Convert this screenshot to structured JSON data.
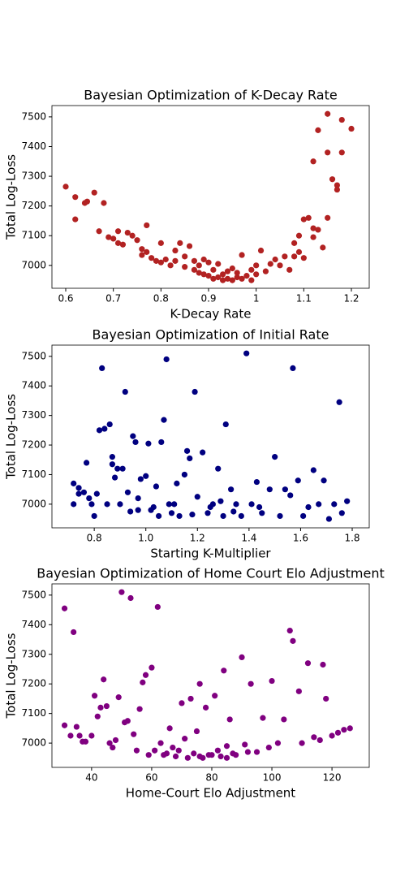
{
  "chart_data": [
    {
      "type": "scatter",
      "title": "Bayesian Optimization of K-Decay Rate",
      "x_label": "K-Decay Rate",
      "y_label": "Total Log-Loss",
      "color": "#b22222",
      "x": [
        0.6,
        0.62,
        0.62,
        0.64,
        0.645,
        0.66,
        0.67,
        0.68,
        0.69,
        0.7,
        0.71,
        0.71,
        0.72,
        0.73,
        0.74,
        0.75,
        0.76,
        0.76,
        0.77,
        0.77,
        0.78,
        0.79,
        0.8,
        0.8,
        0.81,
        0.82,
        0.83,
        0.83,
        0.84,
        0.85,
        0.85,
        0.86,
        0.87,
        0.87,
        0.88,
        0.88,
        0.89,
        0.9,
        0.9,
        0.91,
        0.91,
        0.92,
        0.92,
        0.93,
        0.93,
        0.94,
        0.95,
        0.95,
        0.96,
        0.97,
        0.97,
        0.98,
        0.99,
        1.0,
        1.0,
        1.01,
        1.02,
        1.03,
        1.04,
        1.05,
        1.06,
        1.07,
        1.08,
        1.09,
        1.1,
        1.1,
        1.11,
        1.12,
        1.12,
        1.12,
        1.13,
        1.13,
        1.14,
        1.15,
        1.15,
        1.15,
        1.16,
        1.17,
        1.17,
        1.18,
        1.18,
        1.2,
        1.09,
        1.08,
        0.96,
        0.94,
        0.89,
        0.99
      ],
      "y": [
        7265,
        7230,
        7155,
        7210,
        7215,
        7245,
        7115,
        7210,
        7095,
        7090,
        7115,
        7075,
        7070,
        7110,
        7100,
        7085,
        7055,
        7035,
        7045,
        7135,
        7025,
        7015,
        7075,
        7010,
        7020,
        7000,
        7050,
        7015,
        7075,
        6995,
        7030,
        7065,
        6985,
        7015,
        6975,
        7000,
        6970,
        7010,
        6965,
        6985,
        6955,
        6960,
        7005,
        6950,
        6970,
        6955,
        6990,
        6950,
        6960,
        7035,
        6955,
        6965,
        6985,
        6970,
        7000,
        7050,
        6980,
        7005,
        7020,
        7000,
        7030,
        6985,
        7075,
        7045,
        7025,
        7155,
        7160,
        7125,
        7095,
        7350,
        7455,
        7120,
        7060,
        7510,
        7380,
        7160,
        7290,
        7270,
        7255,
        7490,
        7380,
        7460,
        7100,
        7030,
        6975,
        6980,
        7020,
        6950
      ],
      "xlim": [
        0.571,
        1.2375
      ],
      "ylim": [
        6923,
        7538
      ],
      "xticks": [
        0.6,
        0.7,
        0.8,
        0.9,
        1.0,
        1.1,
        1.2
      ],
      "yticks": [
        7000,
        7100,
        7200,
        7300,
        7400,
        7500
      ]
    },
    {
      "type": "scatter",
      "title": "Bayesian Optimization of Initial Rate",
      "x_label": "Starting K-Multiplier",
      "y_label": "Total Log-Loss",
      "color": "#000080",
      "x": [
        0.72,
        0.72,
        0.74,
        0.74,
        0.76,
        0.77,
        0.78,
        0.79,
        0.8,
        0.81,
        0.82,
        0.83,
        0.84,
        0.85,
        0.86,
        0.87,
        0.87,
        0.88,
        0.89,
        0.9,
        0.91,
        0.92,
        0.93,
        0.94,
        0.95,
        0.96,
        0.97,
        0.98,
        1.0,
        1.01,
        1.02,
        1.04,
        1.05,
        1.06,
        1.07,
        1.08,
        1.09,
        1.1,
        1.12,
        1.13,
        1.15,
        1.16,
        1.17,
        1.19,
        1.2,
        1.22,
        1.24,
        1.26,
        1.28,
        1.3,
        1.31,
        1.33,
        1.35,
        1.37,
        1.39,
        1.41,
        1.43,
        1.45,
        1.48,
        1.5,
        1.52,
        1.54,
        1.56,
        1.57,
        1.59,
        1.61,
        1.63,
        1.65,
        1.67,
        1.69,
        1.71,
        1.73,
        1.75,
        1.76,
        1.78,
        0.97,
        1.03,
        1.11,
        1.18,
        1.25,
        1.29,
        1.34,
        1.44
      ],
      "y": [
        7070,
        7000,
        7055,
        7035,
        7040,
        7140,
        7020,
        7000,
        6960,
        7035,
        7250,
        7460,
        7255,
        7000,
        7270,
        7160,
        7135,
        7090,
        7120,
        7000,
        7120,
        7380,
        7040,
        6975,
        7230,
        7210,
        7020,
        7085,
        7095,
        7205,
        6980,
        7060,
        6960,
        7210,
        7285,
        7490,
        7000,
        6970,
        7070,
        6960,
        7100,
        7180,
        7155,
        7380,
        7025,
        7175,
        6970,
        7000,
        7120,
        6960,
        7270,
        7050,
        7000,
        6960,
        7510,
        7000,
        7075,
        6970,
        7050,
        7160,
        6960,
        7050,
        7030,
        7460,
        7080,
        6960,
        6990,
        7115,
        7000,
        7080,
        6950,
        7000,
        7345,
        6970,
        7010,
        6980,
        6990,
        7000,
        6965,
        6990,
        7010,
        6975,
        6990
      ],
      "xlim": [
        0.636,
        1.866
      ],
      "ylim": [
        6920,
        7538
      ],
      "xticks": [
        0.8,
        {
          "value": 1,
          "label": "1.0"
        },
        1.2,
        1.4,
        1.6,
        1.8
      ],
      "yticks": [
        7000,
        7100,
        7200,
        7300,
        7400,
        7500
      ]
    },
    {
      "type": "scatter",
      "title": "Bayesian Optimization of Home Court Elo Adjustment",
      "x_label": "Home-Court Elo Adjustment",
      "y_label": "Total Log-Loss",
      "color": "#800080",
      "x": [
        31,
        31,
        33,
        34,
        35,
        36,
        37,
        38,
        40,
        41,
        42,
        43,
        44,
        45,
        46,
        47,
        48,
        49,
        50,
        51,
        52,
        53,
        54,
        55,
        56,
        57,
        58,
        59,
        60,
        61,
        62,
        63,
        64,
        66,
        68,
        70,
        71,
        72,
        73,
        74,
        75,
        76,
        77,
        78,
        80,
        81,
        82,
        84,
        85,
        86,
        88,
        90,
        91,
        93,
        95,
        97,
        99,
        100,
        102,
        104,
        106,
        107,
        109,
        110,
        112,
        114,
        116,
        117,
        118,
        120,
        122,
        124,
        126,
        65,
        69,
        79,
        83,
        87,
        92,
        67,
        76,
        85
      ],
      "y": [
        7455,
        7060,
        7025,
        7375,
        7055,
        7025,
        7005,
        7005,
        7025,
        7160,
        7090,
        7120,
        7215,
        7125,
        7000,
        6985,
        7010,
        7155,
        7510,
        7070,
        7075,
        7490,
        7030,
        6975,
        7115,
        7205,
        7230,
        6960,
        7255,
        6975,
        7460,
        7000,
        6960,
        7050,
        6955,
        7135,
        7015,
        6950,
        7150,
        6965,
        7040,
        7200,
        6950,
        7120,
        6960,
        7160,
        6975,
        7245,
        6990,
        7080,
        6960,
        7290,
        6995,
        7200,
        6970,
        7085,
        6985,
        7210,
        7000,
        7080,
        7380,
        7345,
        7175,
        7000,
        7270,
        7020,
        7010,
        7265,
        7150,
        7025,
        7035,
        7045,
        7050,
        6965,
        6975,
        6960,
        6955,
        6965,
        6970,
        6985,
        6955,
        6950
      ],
      "xlim": [
        26.8,
        132.4
      ],
      "ylim": [
        6918,
        7538
      ],
      "xticks": [
        40,
        60,
        80,
        100,
        120
      ],
      "yticks": [
        7000,
        7100,
        7200,
        7300,
        7400,
        7500
      ]
    }
  ]
}
